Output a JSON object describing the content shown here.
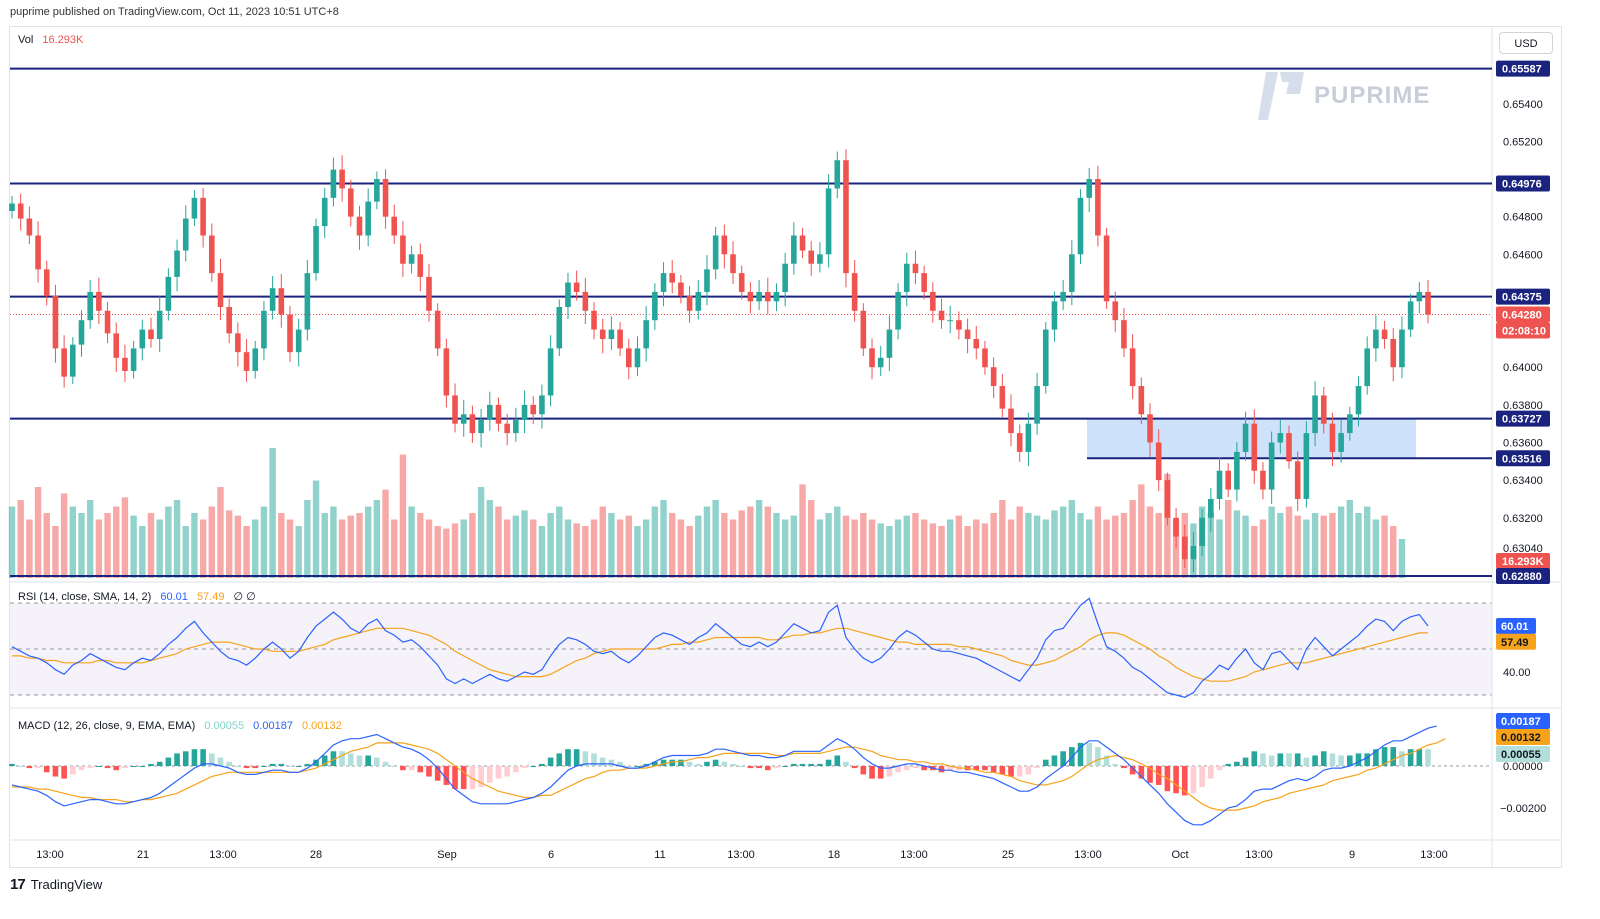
{
  "header": {
    "published": "puprime published on TradingView.com, Oct 11, 2023 10:51 UTC+8"
  },
  "currency_button": "USD",
  "watermark": "PUPRIME",
  "footer": {
    "brand": "TradingView"
  },
  "legend": {
    "vol_label": "Vol",
    "vol_value": "16.293K",
    "rsi_label": "RSI (14, close, SMA, 14, 2)",
    "rsi_value": "60.01",
    "rsi_sma": "57.49",
    "rsi_extra": "∅ ∅",
    "macd_label": "MACD (12, 26, close, 9, EMA, EMA)",
    "macd_hist": "0.00055",
    "macd_line": "0.00187",
    "macd_signal": "0.00132"
  },
  "colors": {
    "up": "#26a69a",
    "down": "#ef5350",
    "level": "#1a237e",
    "rsi": "#2962ff",
    "signal": "#f7a21b",
    "zone": "#bbd6fb"
  },
  "chart_data": {
    "type": "candlestick",
    "price_axis": {
      "ticks": [
        "0.65400",
        "0.65200",
        "0.64800",
        "0.64600",
        "0.64000",
        "0.63800",
        "0.63600",
        "0.63400",
        "0.63200",
        "0.63040"
      ]
    },
    "time_axis": [
      "13:00",
      "21",
      "13:00",
      "28",
      "Sep",
      "6",
      "11",
      "13:00",
      "18",
      "13:00",
      "25",
      "13:00",
      "Oct",
      "13:00",
      "9",
      "13:00"
    ],
    "horizontal_levels": [
      0.65587,
      0.64976,
      0.64375,
      0.63727,
      0.63516
    ],
    "zone": {
      "from": 0.63516,
      "to": 0.63727
    },
    "badges": [
      {
        "text": "0.65587",
        "kind": "level",
        "price": 0.65587
      },
      {
        "text": "0.64976",
        "kind": "level",
        "price": 0.64976
      },
      {
        "text": "0.64375",
        "kind": "level",
        "price": 0.64375
      },
      {
        "text": "0.64280",
        "kind": "last",
        "price": 0.6428
      },
      {
        "text": "02:08:10",
        "kind": "countdown",
        "price": 0.6421
      },
      {
        "text": "0.63727",
        "kind": "level",
        "price": 0.63727
      },
      {
        "text": "0.63516",
        "kind": "level",
        "price": 0.63516
      },
      {
        "text": "16.293K",
        "kind": "vol",
        "price": 0.6302
      },
      {
        "text": "0.62880",
        "kind": "level",
        "price": 0.6288
      }
    ],
    "last_price": 0.6428,
    "price_path": [
      0.6487,
      0.6479,
      0.647,
      0.6452,
      0.6438,
      0.641,
      0.6395,
      0.6412,
      0.6425,
      0.644,
      0.643,
      0.6418,
      0.6405,
      0.6398,
      0.641,
      0.642,
      0.6415,
      0.643,
      0.6448,
      0.6462,
      0.6479,
      0.649,
      0.647,
      0.645,
      0.6432,
      0.6418,
      0.6408,
      0.6398,
      0.641,
      0.643,
      0.6442,
      0.6428,
      0.6408,
      0.642,
      0.645,
      0.6475,
      0.649,
      0.6505,
      0.6495,
      0.648,
      0.647,
      0.6488,
      0.65,
      0.648,
      0.647,
      0.6455,
      0.646,
      0.6448,
      0.643,
      0.641,
      0.6385,
      0.637,
      0.6375,
      0.6365,
      0.6372,
      0.638,
      0.637,
      0.6365,
      0.6372,
      0.638,
      0.6375,
      0.6385,
      0.641,
      0.6432,
      0.6445,
      0.644,
      0.643,
      0.642,
      0.6415,
      0.642,
      0.641,
      0.64,
      0.641,
      0.6425,
      0.644,
      0.645,
      0.6445,
      0.6438,
      0.643,
      0.644,
      0.6452,
      0.647,
      0.646,
      0.645,
      0.644,
      0.6435,
      0.644,
      0.6435,
      0.644,
      0.6455,
      0.647,
      0.6462,
      0.6455,
      0.646,
      0.6495,
      0.651,
      0.645,
      0.643,
      0.641,
      0.64,
      0.6405,
      0.642,
      0.644,
      0.6455,
      0.645,
      0.644,
      0.643,
      0.6425,
      0.6425,
      0.642,
      0.6415,
      0.641,
      0.64,
      0.639,
      0.6378,
      0.6365,
      0.6355,
      0.637,
      0.639,
      0.642,
      0.6435,
      0.644,
      0.646,
      0.649,
      0.65,
      0.647,
      0.6435,
      0.6425,
      0.641,
      0.639,
      0.6375,
      0.636,
      0.634,
      0.632,
      0.631,
      0.6298,
      0.6305,
      0.632,
      0.633,
      0.6345,
      0.6335,
      0.6355,
      0.637,
      0.6345,
      0.6335,
      0.636,
      0.6365,
      0.635,
      0.633,
      0.6365,
      0.6385,
      0.637,
      0.6355,
      0.6365,
      0.6375,
      0.639,
      0.641,
      0.642,
      0.6415,
      0.64,
      0.642,
      0.6435,
      0.644,
      0.6428
    ],
    "volume": [
      0.55,
      0.6,
      0.45,
      0.7,
      0.5,
      0.4,
      0.65,
      0.55,
      0.5,
      0.6,
      0.45,
      0.5,
      0.55,
      0.62,
      0.48,
      0.4,
      0.5,
      0.45,
      0.55,
      0.6,
      0.4,
      0.5,
      0.45,
      0.55,
      0.7,
      0.52,
      0.48,
      0.4,
      0.45,
      0.55,
      1.0,
      0.5,
      0.45,
      0.4,
      0.6,
      0.75,
      0.5,
      0.55,
      0.45,
      0.48,
      0.5,
      0.55,
      0.6,
      0.68,
      0.45,
      0.95,
      0.55,
      0.5,
      0.45,
      0.4,
      0.38,
      0.42,
      0.45,
      0.5,
      0.7,
      0.6,
      0.55,
      0.45,
      0.48,
      0.52,
      0.45,
      0.4,
      0.5,
      0.55,
      0.45,
      0.42,
      0.4,
      0.45,
      0.55,
      0.5,
      0.45,
      0.48,
      0.4,
      0.45,
      0.55,
      0.6,
      0.5,
      0.45,
      0.4,
      0.48,
      0.55,
      0.6,
      0.5,
      0.45,
      0.52,
      0.55,
      0.6,
      0.55,
      0.5,
      0.45,
      0.48,
      0.72,
      0.6,
      0.45,
      0.5,
      0.55,
      0.48,
      0.45,
      0.5,
      0.45,
      0.42,
      0.4,
      0.45,
      0.48,
      0.5,
      0.45,
      0.42,
      0.4,
      0.45,
      0.48,
      0.4,
      0.45,
      0.42,
      0.5,
      0.6,
      0.45,
      0.55,
      0.5,
      0.48,
      0.45,
      0.52,
      0.55,
      0.6,
      0.5,
      0.45,
      0.55,
      0.45,
      0.48,
      0.5,
      0.6,
      0.72,
      0.55,
      0.5,
      0.8,
      0.45,
      0.5,
      0.42,
      0.55,
      0.5,
      0.45,
      0.6,
      0.52,
      0.48,
      0.4,
      0.45,
      0.55,
      0.5,
      0.55,
      0.48,
      0.45,
      0.5,
      0.48,
      0.5,
      0.55,
      0.6,
      0.5,
      0.55,
      0.45,
      0.48,
      0.4,
      0.3
    ],
    "rsi": [
      51,
      49,
      47,
      46,
      44,
      41,
      39,
      43,
      45,
      48,
      46,
      44,
      42,
      41,
      44,
      46,
      45,
      48,
      52,
      55,
      59,
      62,
      57,
      53,
      49,
      46,
      45,
      43,
      46,
      50,
      53,
      50,
      46,
      49,
      55,
      60,
      63,
      66,
      63,
      59,
      57,
      61,
      63,
      58,
      56,
      53,
      54,
      51,
      47,
      43,
      37,
      35,
      37,
      35,
      37,
      39,
      37,
      36,
      38,
      40,
      39,
      41,
      47,
      52,
      55,
      54,
      52,
      49,
      48,
      49,
      46,
      44,
      47,
      51,
      55,
      57,
      56,
      54,
      52,
      55,
      57,
      61,
      58,
      55,
      52,
      51,
      53,
      51,
      53,
      57,
      61,
      59,
      57,
      58,
      66,
      69,
      55,
      50,
      46,
      44,
      46,
      50,
      55,
      58,
      56,
      53,
      50,
      49,
      49,
      48,
      47,
      46,
      44,
      42,
      40,
      38,
      36,
      41,
      46,
      54,
      58,
      59,
      64,
      69,
      72,
      61,
      51,
      49,
      46,
      42,
      40,
      37,
      34,
      31,
      30,
      29,
      31,
      36,
      39,
      43,
      41,
      46,
      50,
      44,
      41,
      48,
      49,
      45,
      41,
      50,
      55,
      51,
      47,
      50,
      53,
      56,
      60,
      63,
      62,
      58,
      62,
      64,
      65,
      60
    ],
    "rsi_sma": [
      47,
      47,
      46,
      46,
      45,
      45,
      44,
      44,
      44,
      44,
      45,
      45,
      44,
      44,
      44,
      44,
      45,
      46,
      47,
      48,
      50,
      51,
      52,
      53,
      53,
      53,
      52,
      51,
      50,
      50,
      49,
      49,
      49,
      49,
      50,
      51,
      52,
      54,
      55,
      56,
      57,
      58,
      59,
      59,
      59,
      59,
      58,
      57,
      56,
      54,
      52,
      49,
      47,
      45,
      43,
      41,
      40,
      39,
      38,
      38,
      38,
      38,
      39,
      41,
      43,
      45,
      46,
      48,
      49,
      50,
      50,
      50,
      50,
      50,
      50,
      51,
      52,
      52,
      53,
      53,
      54,
      55,
      55,
      55,
      55,
      55,
      55,
      54,
      54,
      55,
      56,
      56,
      57,
      57,
      58,
      59,
      59,
      58,
      57,
      56,
      55,
      54,
      53,
      53,
      52,
      52,
      52,
      52,
      52,
      51,
      51,
      50,
      49,
      48,
      47,
      45,
      44,
      43,
      43,
      44,
      45,
      47,
      49,
      51,
      54,
      56,
      57,
      57,
      56,
      54,
      52,
      50,
      47,
      45,
      42,
      40,
      38,
      37,
      36,
      36,
      36,
      37,
      38,
      40,
      41,
      42,
      43,
      44,
      44,
      44,
      45,
      46,
      47,
      48,
      49,
      50,
      51,
      52,
      53,
      54,
      55,
      56,
      57,
      57
    ],
    "macd": [
      -0.0009,
      -0.001,
      -0.0011,
      -0.0012,
      -0.0014,
      -0.0017,
      -0.0019,
      -0.0018,
      -0.0017,
      -0.0016,
      -0.0016,
      -0.0017,
      -0.0018,
      -0.0018,
      -0.0017,
      -0.0016,
      -0.0015,
      -0.0013,
      -0.001,
      -0.0007,
      -0.0004,
      -0.0001,
      0.0001,
      0.0001,
      0.0,
      -0.0001,
      -0.0003,
      -0.0004,
      -0.0004,
      -0.0003,
      -0.0002,
      -0.0002,
      -0.0003,
      -0.0003,
      -0.0001,
      0.0002,
      0.0006,
      0.001,
      0.0012,
      0.0013,
      0.0013,
      0.0014,
      0.0015,
      0.0013,
      0.0011,
      0.0009,
      0.0008,
      0.0006,
      0.0003,
      -0.0001,
      -0.0006,
      -0.0011,
      -0.0014,
      -0.0017,
      -0.0018,
      -0.0018,
      -0.0018,
      -0.0018,
      -0.0017,
      -0.0016,
      -0.0015,
      -0.0013,
      -0.001,
      -0.0006,
      -0.0002,
      0.0,
      0.0001,
      0.0001,
      0.0001,
      0.0001,
      0.0,
      -0.0001,
      -0.0001,
      0.0,
      0.0002,
      0.0004,
      0.0005,
      0.0005,
      0.0005,
      0.0005,
      0.0006,
      0.0008,
      0.0008,
      0.0007,
      0.0006,
      0.0005,
      0.0005,
      0.0004,
      0.0004,
      0.0005,
      0.0007,
      0.0007,
      0.0007,
      0.0007,
      0.001,
      0.0013,
      0.0011,
      0.0008,
      0.0004,
      0.0001,
      -0.0001,
      -0.0001,
      0.0,
      0.0001,
      0.0001,
      0.0,
      -0.0001,
      -0.0002,
      -0.0002,
      -0.0003,
      -0.0003,
      -0.0004,
      -0.0005,
      -0.0006,
      -0.0008,
      -0.001,
      -0.0012,
      -0.0012,
      -0.001,
      -0.0006,
      -0.0003,
      0.0,
      0.0004,
      0.0009,
      0.0012,
      0.0012,
      0.0009,
      0.0006,
      0.0003,
      -0.0001,
      -0.0005,
      -0.0009,
      -0.0013,
      -0.0018,
      -0.0022,
      -0.0026,
      -0.0028,
      -0.0028,
      -0.0026,
      -0.0023,
      -0.002,
      -0.0019,
      -0.0016,
      -0.0012,
      -0.0011,
      -0.0011,
      -0.0009,
      -0.0007,
      -0.0006,
      -0.0007,
      -0.0005,
      -0.0002,
      -0.0001,
      -0.0001,
      0.0,
      0.0002,
      0.0004,
      0.0007,
      0.001,
      0.0012,
      0.0012,
      0.0014,
      0.0016,
      0.0018,
      0.0019
    ],
    "macd_signal": [
      -0.001,
      -0.001,
      -0.001,
      -0.0011,
      -0.0011,
      -0.0012,
      -0.0013,
      -0.0014,
      -0.0015,
      -0.0015,
      -0.0016,
      -0.0016,
      -0.0016,
      -0.0017,
      -0.0017,
      -0.0016,
      -0.0016,
      -0.0015,
      -0.0014,
      -0.0013,
      -0.0011,
      -0.0009,
      -0.0007,
      -0.0005,
      -0.0004,
      -0.0003,
      -0.0003,
      -0.0003,
      -0.0003,
      -0.0003,
      -0.0003,
      -0.0003,
      -0.0003,
      -0.0003,
      -0.0002,
      -0.0001,
      0.0001,
      0.0003,
      0.0005,
      0.0007,
      0.0008,
      0.0009,
      0.0011,
      0.0011,
      0.0011,
      0.0011,
      0.001,
      0.0009,
      0.0008,
      0.0006,
      0.0003,
      0.0,
      -0.0003,
      -0.0006,
      -0.0008,
      -0.001,
      -0.0012,
      -0.0013,
      -0.0014,
      -0.0015,
      -0.0015,
      -0.0014,
      -0.0014,
      -0.0012,
      -0.001,
      -0.0008,
      -0.0006,
      -0.0005,
      -0.0003,
      -0.0002,
      -0.0002,
      -0.0001,
      -0.0001,
      -0.0001,
      0.0,
      0.0001,
      0.0002,
      0.0002,
      0.0003,
      0.0004,
      0.0004,
      0.0005,
      0.0006,
      0.0006,
      0.0006,
      0.0006,
      0.0006,
      0.0006,
      0.0005,
      0.0005,
      0.0006,
      0.0006,
      0.0006,
      0.0006,
      0.0007,
      0.0008,
      0.0009,
      0.0009,
      0.0008,
      0.0007,
      0.0005,
      0.0004,
      0.0003,
      0.0003,
      0.0002,
      0.0002,
      0.0001,
      0.0001,
      0.0,
      -0.0001,
      -0.0001,
      -0.0002,
      -0.0003,
      -0.0003,
      -0.0004,
      -0.0005,
      -0.0007,
      -0.0008,
      -0.0009,
      -0.0009,
      -0.0008,
      -0.0007,
      -0.0005,
      -0.0002,
      0.0001,
      0.0003,
      0.0004,
      0.0005,
      0.0004,
      0.0003,
      0.0001,
      -0.0001,
      -0.0004,
      -0.0006,
      -0.0009,
      -0.0012,
      -0.0015,
      -0.0018,
      -0.002,
      -0.0021,
      -0.0021,
      -0.0021,
      -0.002,
      -0.0019,
      -0.0017,
      -0.0016,
      -0.0015,
      -0.0013,
      -0.0012,
      -0.0011,
      -0.001,
      -0.0009,
      -0.0007,
      -0.0006,
      -0.0005,
      -0.0004,
      -0.0002,
      -0.0001,
      0.0001,
      0.0003,
      0.0005,
      0.0006,
      0.0008,
      0.001,
      0.0011,
      0.0013
    ]
  }
}
